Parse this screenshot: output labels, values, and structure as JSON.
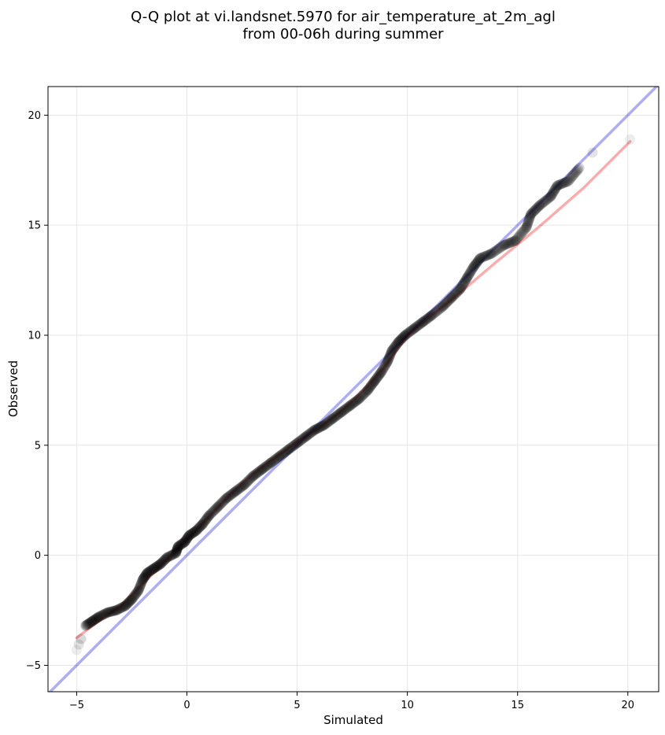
{
  "chart_data": {
    "type": "scatter",
    "title_line1": "Q-Q plot at vi.landsnet.5970 for air_temperature_at_2m_agl",
    "title_line2": "from 00-06h during summer",
    "xlabel": "Simulated",
    "ylabel": "Observed",
    "xlim": [
      -6.3,
      21.4
    ],
    "ylim": [
      -6.2,
      21.3
    ],
    "xticks": [
      -5,
      0,
      5,
      10,
      15,
      20
    ],
    "yticks": [
      -5,
      0,
      5,
      10,
      15,
      20
    ],
    "grid": true,
    "colors": {
      "points": "#000000",
      "identity_line": "#0000dd",
      "fit_line": "#ee0000",
      "grid": "#e6e6e6"
    },
    "identity_line": [
      [
        -6.3,
        -6.3
      ],
      [
        21.4,
        21.4
      ]
    ],
    "fit_line": [
      [
        -5.0,
        -3.75
      ],
      [
        -4.0,
        -3.0
      ],
      [
        -3.0,
        -2.3
      ],
      [
        -2.0,
        -1.3
      ],
      [
        -1.0,
        -0.3
      ],
      [
        0.0,
        0.7
      ],
      [
        1.0,
        1.75
      ],
      [
        2.0,
        2.8
      ],
      [
        3.0,
        3.7
      ],
      [
        4.0,
        4.45
      ],
      [
        5.0,
        5.15
      ],
      [
        6.0,
        5.8
      ],
      [
        7.0,
        6.55
      ],
      [
        8.0,
        7.5
      ],
      [
        9.0,
        8.6
      ],
      [
        9.5,
        9.3
      ],
      [
        10.0,
        10.0
      ],
      [
        11.0,
        10.85
      ],
      [
        12.0,
        11.6
      ],
      [
        14.0,
        13.3
      ],
      [
        16.0,
        14.95
      ],
      [
        18.0,
        16.7
      ],
      [
        20.1,
        18.8
      ]
    ],
    "quantiles": [
      [
        -5.0,
        -4.3
      ],
      [
        -4.9,
        -4.05
      ],
      [
        -4.8,
        -3.8
      ],
      [
        -4.6,
        -3.2
      ],
      [
        -4.3,
        -3.0
      ],
      [
        -4.0,
        -2.8
      ],
      [
        -3.6,
        -2.6
      ],
      [
        -3.2,
        -2.5
      ],
      [
        -2.8,
        -2.3
      ],
      [
        -2.5,
        -2.0
      ],
      [
        -2.2,
        -1.6
      ],
      [
        -2.0,
        -1.1
      ],
      [
        -1.8,
        -0.8
      ],
      [
        -1.5,
        -0.6
      ],
      [
        -1.2,
        -0.4
      ],
      [
        -0.9,
        -0.1
      ],
      [
        -0.5,
        0.1
      ],
      [
        -0.4,
        0.4
      ],
      [
        -0.1,
        0.6
      ],
      [
        0.1,
        0.9
      ],
      [
        0.4,
        1.1
      ],
      [
        0.7,
        1.4
      ],
      [
        1.0,
        1.8
      ],
      [
        1.4,
        2.2
      ],
      [
        1.8,
        2.6
      ],
      [
        2.2,
        2.9
      ],
      [
        2.6,
        3.2
      ],
      [
        3.0,
        3.6
      ],
      [
        3.4,
        3.9
      ],
      [
        3.8,
        4.2
      ],
      [
        4.2,
        4.5
      ],
      [
        4.6,
        4.8
      ],
      [
        5.0,
        5.1
      ],
      [
        5.4,
        5.4
      ],
      [
        5.8,
        5.7
      ],
      [
        6.2,
        5.9
      ],
      [
        6.6,
        6.2
      ],
      [
        7.0,
        6.5
      ],
      [
        7.4,
        6.8
      ],
      [
        7.8,
        7.1
      ],
      [
        8.2,
        7.5
      ],
      [
        8.5,
        7.9
      ],
      [
        8.8,
        8.3
      ],
      [
        9.1,
        8.8
      ],
      [
        9.3,
        9.3
      ],
      [
        9.6,
        9.7
      ],
      [
        9.9,
        10.0
      ],
      [
        10.3,
        10.3
      ],
      [
        10.7,
        10.6
      ],
      [
        11.1,
        10.9
      ],
      [
        11.6,
        11.3
      ],
      [
        12.0,
        11.7
      ],
      [
        12.4,
        12.1
      ],
      [
        12.7,
        12.6
      ],
      [
        13.0,
        13.1
      ],
      [
        13.3,
        13.5
      ],
      [
        13.8,
        13.7
      ],
      [
        14.4,
        14.1
      ],
      [
        14.9,
        14.3
      ],
      [
        15.4,
        14.9
      ],
      [
        15.6,
        15.5
      ],
      [
        16.0,
        15.9
      ],
      [
        16.5,
        16.3
      ],
      [
        16.8,
        16.8
      ],
      [
        17.3,
        17.0
      ],
      [
        17.8,
        17.6
      ],
      [
        18.4,
        18.3
      ],
      [
        20.1,
        18.9
      ]
    ]
  }
}
